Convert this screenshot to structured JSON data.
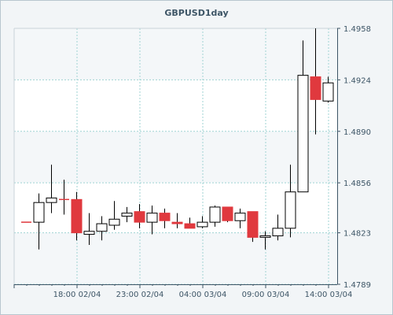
{
  "chart_data": {
    "type": "candlestick",
    "title": "GBPUSD1day",
    "y_ticks": [
      "1.4958",
      "1.4924",
      "1.4890",
      "1.4856",
      "1.4823",
      "1.4789"
    ],
    "x_ticks": [
      {
        "label": "18:00 02/04",
        "candle_index": 4
      },
      {
        "label": "23:00 02/04",
        "candle_index": 9
      },
      {
        "label": "04:00 03/04",
        "candle_index": 14
      },
      {
        "label": "09:00 03/04",
        "candle_index": 19
      },
      {
        "label": "14:00 03/04",
        "candle_index": 24
      }
    ],
    "ylim": [
      1.4789,
      1.4958
    ],
    "grid": true,
    "bull_color": "#ffffff",
    "bear_color": "#e0393e",
    "candles": [
      {
        "open": 1.483,
        "high": 1.483,
        "low": 1.483,
        "close": 1.483
      },
      {
        "open": 1.483,
        "high": 1.4849,
        "low": 1.4812,
        "close": 1.4843
      },
      {
        "open": 1.4843,
        "high": 1.4868,
        "low": 1.4836,
        "close": 1.4846
      },
      {
        "open": 1.4845,
        "high": 1.4858,
        "low": 1.4835,
        "close": 1.4845
      },
      {
        "open": 1.4845,
        "high": 1.485,
        "low": 1.4818,
        "close": 1.4823
      },
      {
        "open": 1.4822,
        "high": 1.4836,
        "low": 1.4815,
        "close": 1.4824
      },
      {
        "open": 1.4824,
        "high": 1.4834,
        "low": 1.4818,
        "close": 1.4829
      },
      {
        "open": 1.4828,
        "high": 1.4844,
        "low": 1.4825,
        "close": 1.4832
      },
      {
        "open": 1.4834,
        "high": 1.484,
        "low": 1.483,
        "close": 1.4836
      },
      {
        "open": 1.4837,
        "high": 1.4842,
        "low": 1.4826,
        "close": 1.483
      },
      {
        "open": 1.483,
        "high": 1.4841,
        "low": 1.4822,
        "close": 1.4836
      },
      {
        "open": 1.4836,
        "high": 1.4839,
        "low": 1.4826,
        "close": 1.4831
      },
      {
        "open": 1.483,
        "high": 1.4836,
        "low": 1.4826,
        "close": 1.4829
      },
      {
        "open": 1.4829,
        "high": 1.4833,
        "low": 1.4826,
        "close": 1.4826
      },
      {
        "open": 1.4827,
        "high": 1.4834,
        "low": 1.4826,
        "close": 1.483
      },
      {
        "open": 1.483,
        "high": 1.4841,
        "low": 1.4827,
        "close": 1.484
      },
      {
        "open": 1.484,
        "high": 1.484,
        "low": 1.483,
        "close": 1.4831
      },
      {
        "open": 1.4831,
        "high": 1.4839,
        "low": 1.4826,
        "close": 1.4836
      },
      {
        "open": 1.4837,
        "high": 1.4837,
        "low": 1.4817,
        "close": 1.482
      },
      {
        "open": 1.482,
        "high": 1.4824,
        "low": 1.4812,
        "close": 1.4821
      },
      {
        "open": 1.4821,
        "high": 1.4835,
        "low": 1.4818,
        "close": 1.4826
      },
      {
        "open": 1.4826,
        "high": 1.4868,
        "low": 1.482,
        "close": 1.485
      },
      {
        "open": 1.485,
        "high": 1.495,
        "low": 1.485,
        "close": 1.4927
      },
      {
        "open": 1.4926,
        "high": 1.4958,
        "low": 1.4888,
        "close": 1.4911
      },
      {
        "open": 1.491,
        "high": 1.4926,
        "low": 1.4909,
        "close": 1.4922
      }
    ]
  }
}
